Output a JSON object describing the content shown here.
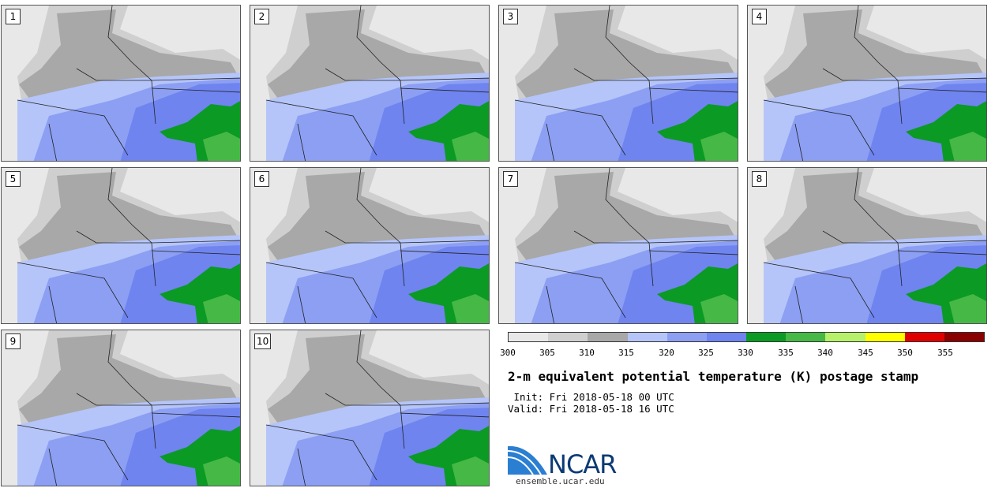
{
  "panels": [
    {
      "label": "1"
    },
    {
      "label": "2"
    },
    {
      "label": "3"
    },
    {
      "label": "4"
    },
    {
      "label": "5"
    },
    {
      "label": "6"
    },
    {
      "label": "7"
    },
    {
      "label": "8"
    },
    {
      "label": "9"
    },
    {
      "label": "10"
    }
  ],
  "colorbar": {
    "ticks": [
      "300",
      "305",
      "310",
      "315",
      "320",
      "325",
      "330",
      "335",
      "340",
      "345",
      "350",
      "355"
    ],
    "colors": [
      "#e8e8e8",
      "#cfcfcf",
      "#a8a8a8",
      "#b5c5f9",
      "#8c9ff3",
      "#6f84ef",
      "#0b9a24",
      "#46b846",
      "#b7f06a",
      "#ffff00",
      "#e00000",
      "#8a0000"
    ]
  },
  "title": "2-m equivalent potential temperature (K) postage stamp",
  "init": " Init: Fri 2018-05-18 00 UTC",
  "valid": "Valid: Fri 2018-05-18 16 UTC",
  "logo": {
    "text": "NCAR",
    "url": "ensemble.ucar.edu"
  }
}
